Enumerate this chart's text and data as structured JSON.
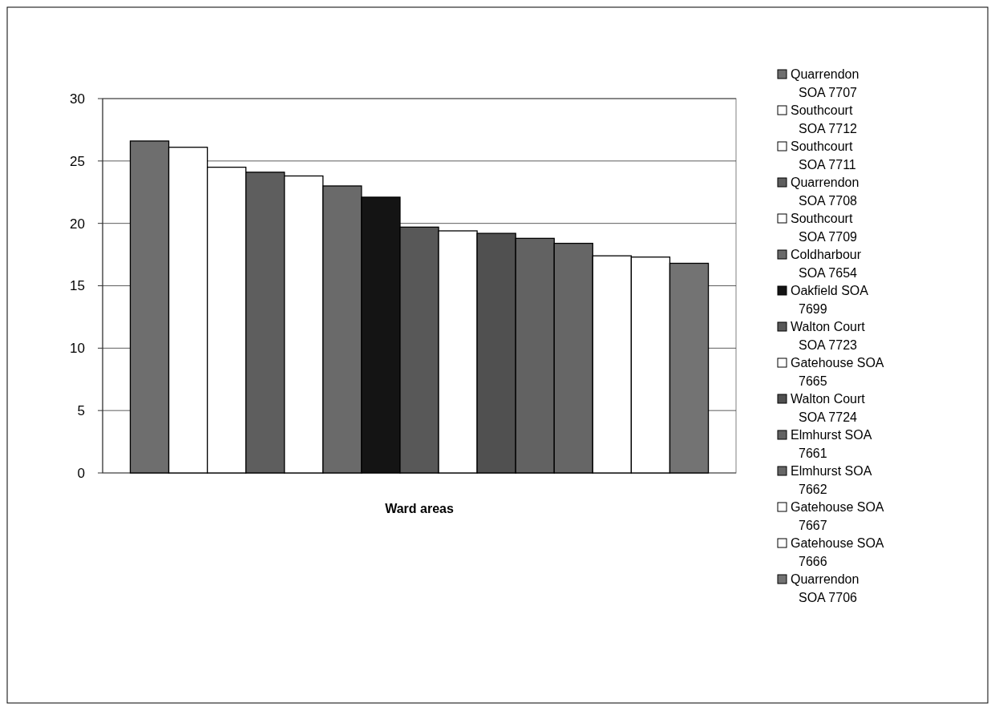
{
  "chart_data": {
    "type": "bar",
    "xlabel": "Ward areas",
    "categories": [
      null
    ],
    "ylim": [
      0,
      30
    ],
    "yticks": [
      0,
      5,
      10,
      15,
      20,
      25,
      30
    ],
    "grid": "y",
    "legend": "right",
    "series": [
      {
        "name": "Quarrendon SOA 7707",
        "color": "#6e6e6e",
        "values": [
          26.6
        ]
      },
      {
        "name": "Southcourt SOA 7712",
        "color": "#ffffff",
        "values": [
          26.1
        ]
      },
      {
        "name": "Southcourt SOA 7711",
        "color": "#ffffff",
        "values": [
          24.5
        ]
      },
      {
        "name": "Quarrendon SOA 7708",
        "color": "#5e5e5e",
        "values": [
          24.1
        ]
      },
      {
        "name": "Southcourt SOA 7709",
        "color": "#ffffff",
        "values": [
          23.8
        ]
      },
      {
        "name": "Coldharbour SOA 7654",
        "color": "#6a6a6a",
        "values": [
          23.0
        ]
      },
      {
        "name": "Oakfield SOA 7699",
        "color": "#141414",
        "values": [
          22.1
        ]
      },
      {
        "name": "Walton Court SOA 7723",
        "color": "#585858",
        "values": [
          19.7
        ]
      },
      {
        "name": "Gatehouse SOA 7665",
        "color": "#ffffff",
        "values": [
          19.4
        ]
      },
      {
        "name": "Walton Court SOA 7724",
        "color": "#505050",
        "values": [
          19.2
        ]
      },
      {
        "name": "Elmhurst SOA 7661",
        "color": "#626262",
        "values": [
          18.8
        ]
      },
      {
        "name": "Elmhurst SOA 7662",
        "color": "#666666",
        "values": [
          18.4
        ]
      },
      {
        "name": "Gatehouse SOA 7667",
        "color": "#ffffff",
        "values": [
          17.4
        ]
      },
      {
        "name": "Gatehouse SOA 7666",
        "color": "#ffffff",
        "values": [
          17.3
        ]
      },
      {
        "name": "Quarrendon SOA 7706",
        "color": "#737373",
        "values": [
          16.8
        ]
      }
    ]
  }
}
